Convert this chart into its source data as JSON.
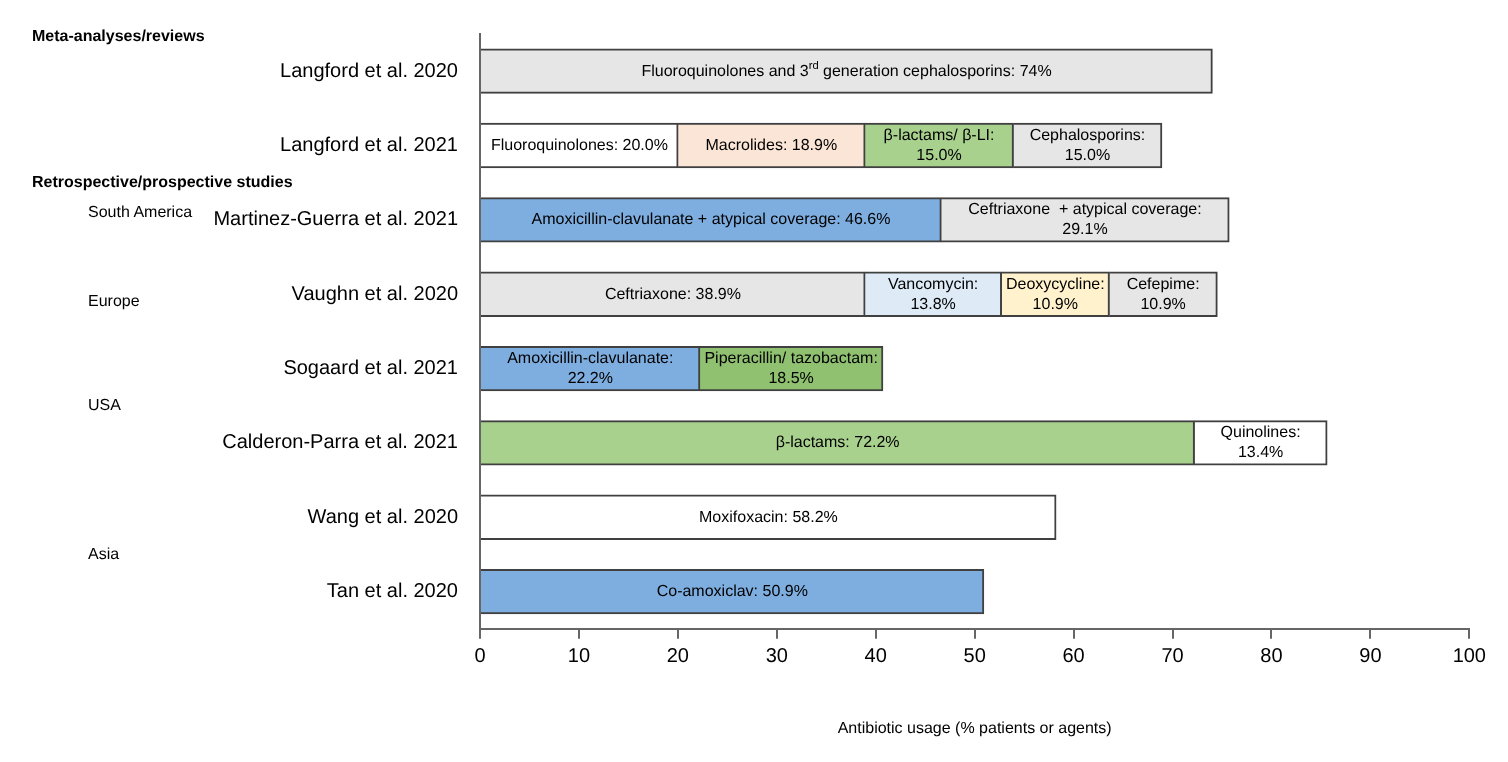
{
  "chart_data": {
    "type": "bar",
    "orientation": "horizontal",
    "stacked": true,
    "xlabel": "Antibiotic usage (% patients or agents)",
    "categories": [
      "Langford et al. 2020",
      "Langford et al. 2021",
      "Martinez-Guerra et al. 2021",
      "Vaughn et al. 2020",
      "Sogaard et al. 2021",
      "Calderon-Parra et al. 2021",
      "Wang et al. 2020",
      "Tan et al. 2020"
    ],
    "series": [
      {
        "colors": [
          "#e7e6e6",
          "#ffffff",
          "#7eaee0",
          "#e7e6e6",
          "#7eaee0",
          "#a9d18e",
          "#ffffff",
          "#7eaee0"
        ],
        "values": [
          74,
          20.0,
          46.6,
          38.9,
          22.2,
          72.2,
          58.2,
          50.9
        ],
        "value_labels": [
          "Fluoroquinolones and 3$^{rd}$ generation cephalosporins: 74%",
          "Fluoroquinolones: 20.0%",
          "Amoxicillin-clavulanate + atypical coverage: 46.6%",
          "Ceftriaxone: 38.9%",
          "Amoxicillin-clavulanate: 22.2%",
          "β-lactams: 72.2%",
          "Moxifoxacin: 58.2%",
          "Co-amoxiclav: 50.9%"
        ]
      },
      {
        "colors": [
          "#ffffff",
          "#fbe5d6",
          "#e7e6e6",
          "#deebf7",
          "#8fc170",
          "#ffffff",
          "#ffffff",
          "#ffffff"
        ],
        "values": [
          null,
          18.9,
          29.1,
          13.8,
          18.5,
          13.4,
          null,
          null
        ],
        "value_labels": [
          null,
          "Macrolides: 18.9%",
          "Ceftriaxone  + atypical coverage: 29.1%",
          "Vancomycin: 13.8%",
          "Piperacillin/ tazobactam: 18.5%",
          "Quinolines: 13.4%",
          null,
          null
        ]
      },
      {
        "colors": [
          "#ffffff",
          "#a9d18e",
          "#ffffff",
          "#fff2cc",
          "#ffffff",
          "#ffffff",
          "#ffffff",
          "#ffffff"
        ],
        "values": [
          null,
          15.0,
          null,
          10.9,
          null,
          null,
          null,
          null
        ],
        "value_labels": [
          null,
          "β-lactams/ β-LI: 15.0%",
          null,
          "Deoxycycline: 10.9%",
          null,
          null,
          null,
          null
        ]
      },
      {
        "colors": [
          "#ffffff",
          "#e7e6e6",
          "#ffffff",
          "#e7e6e6",
          "#ffffff",
          "#ffffff",
          "#ffffff",
          "#ffffff"
        ],
        "values": [
          null,
          15.0,
          null,
          10.9,
          null,
          null,
          null,
          null
        ],
        "value_labels": [
          null,
          "Cephalosporins: 15.0%",
          null,
          "Cefepime: 10.9%",
          null,
          null,
          null,
          null
        ]
      }
    ],
    "xlim": [
      0,
      100
    ],
    "xticks": [
      0,
      10,
      20,
      30,
      40,
      50,
      60,
      70,
      80,
      90,
      100
    ],
    "annotations": [
      "Meta-analyses/reviews",
      "Retrospective/prospective studies",
      "South America",
      "Europe",
      "USA",
      "Asia"
    ],
    "grid": false,
    "legend": false
  }
}
